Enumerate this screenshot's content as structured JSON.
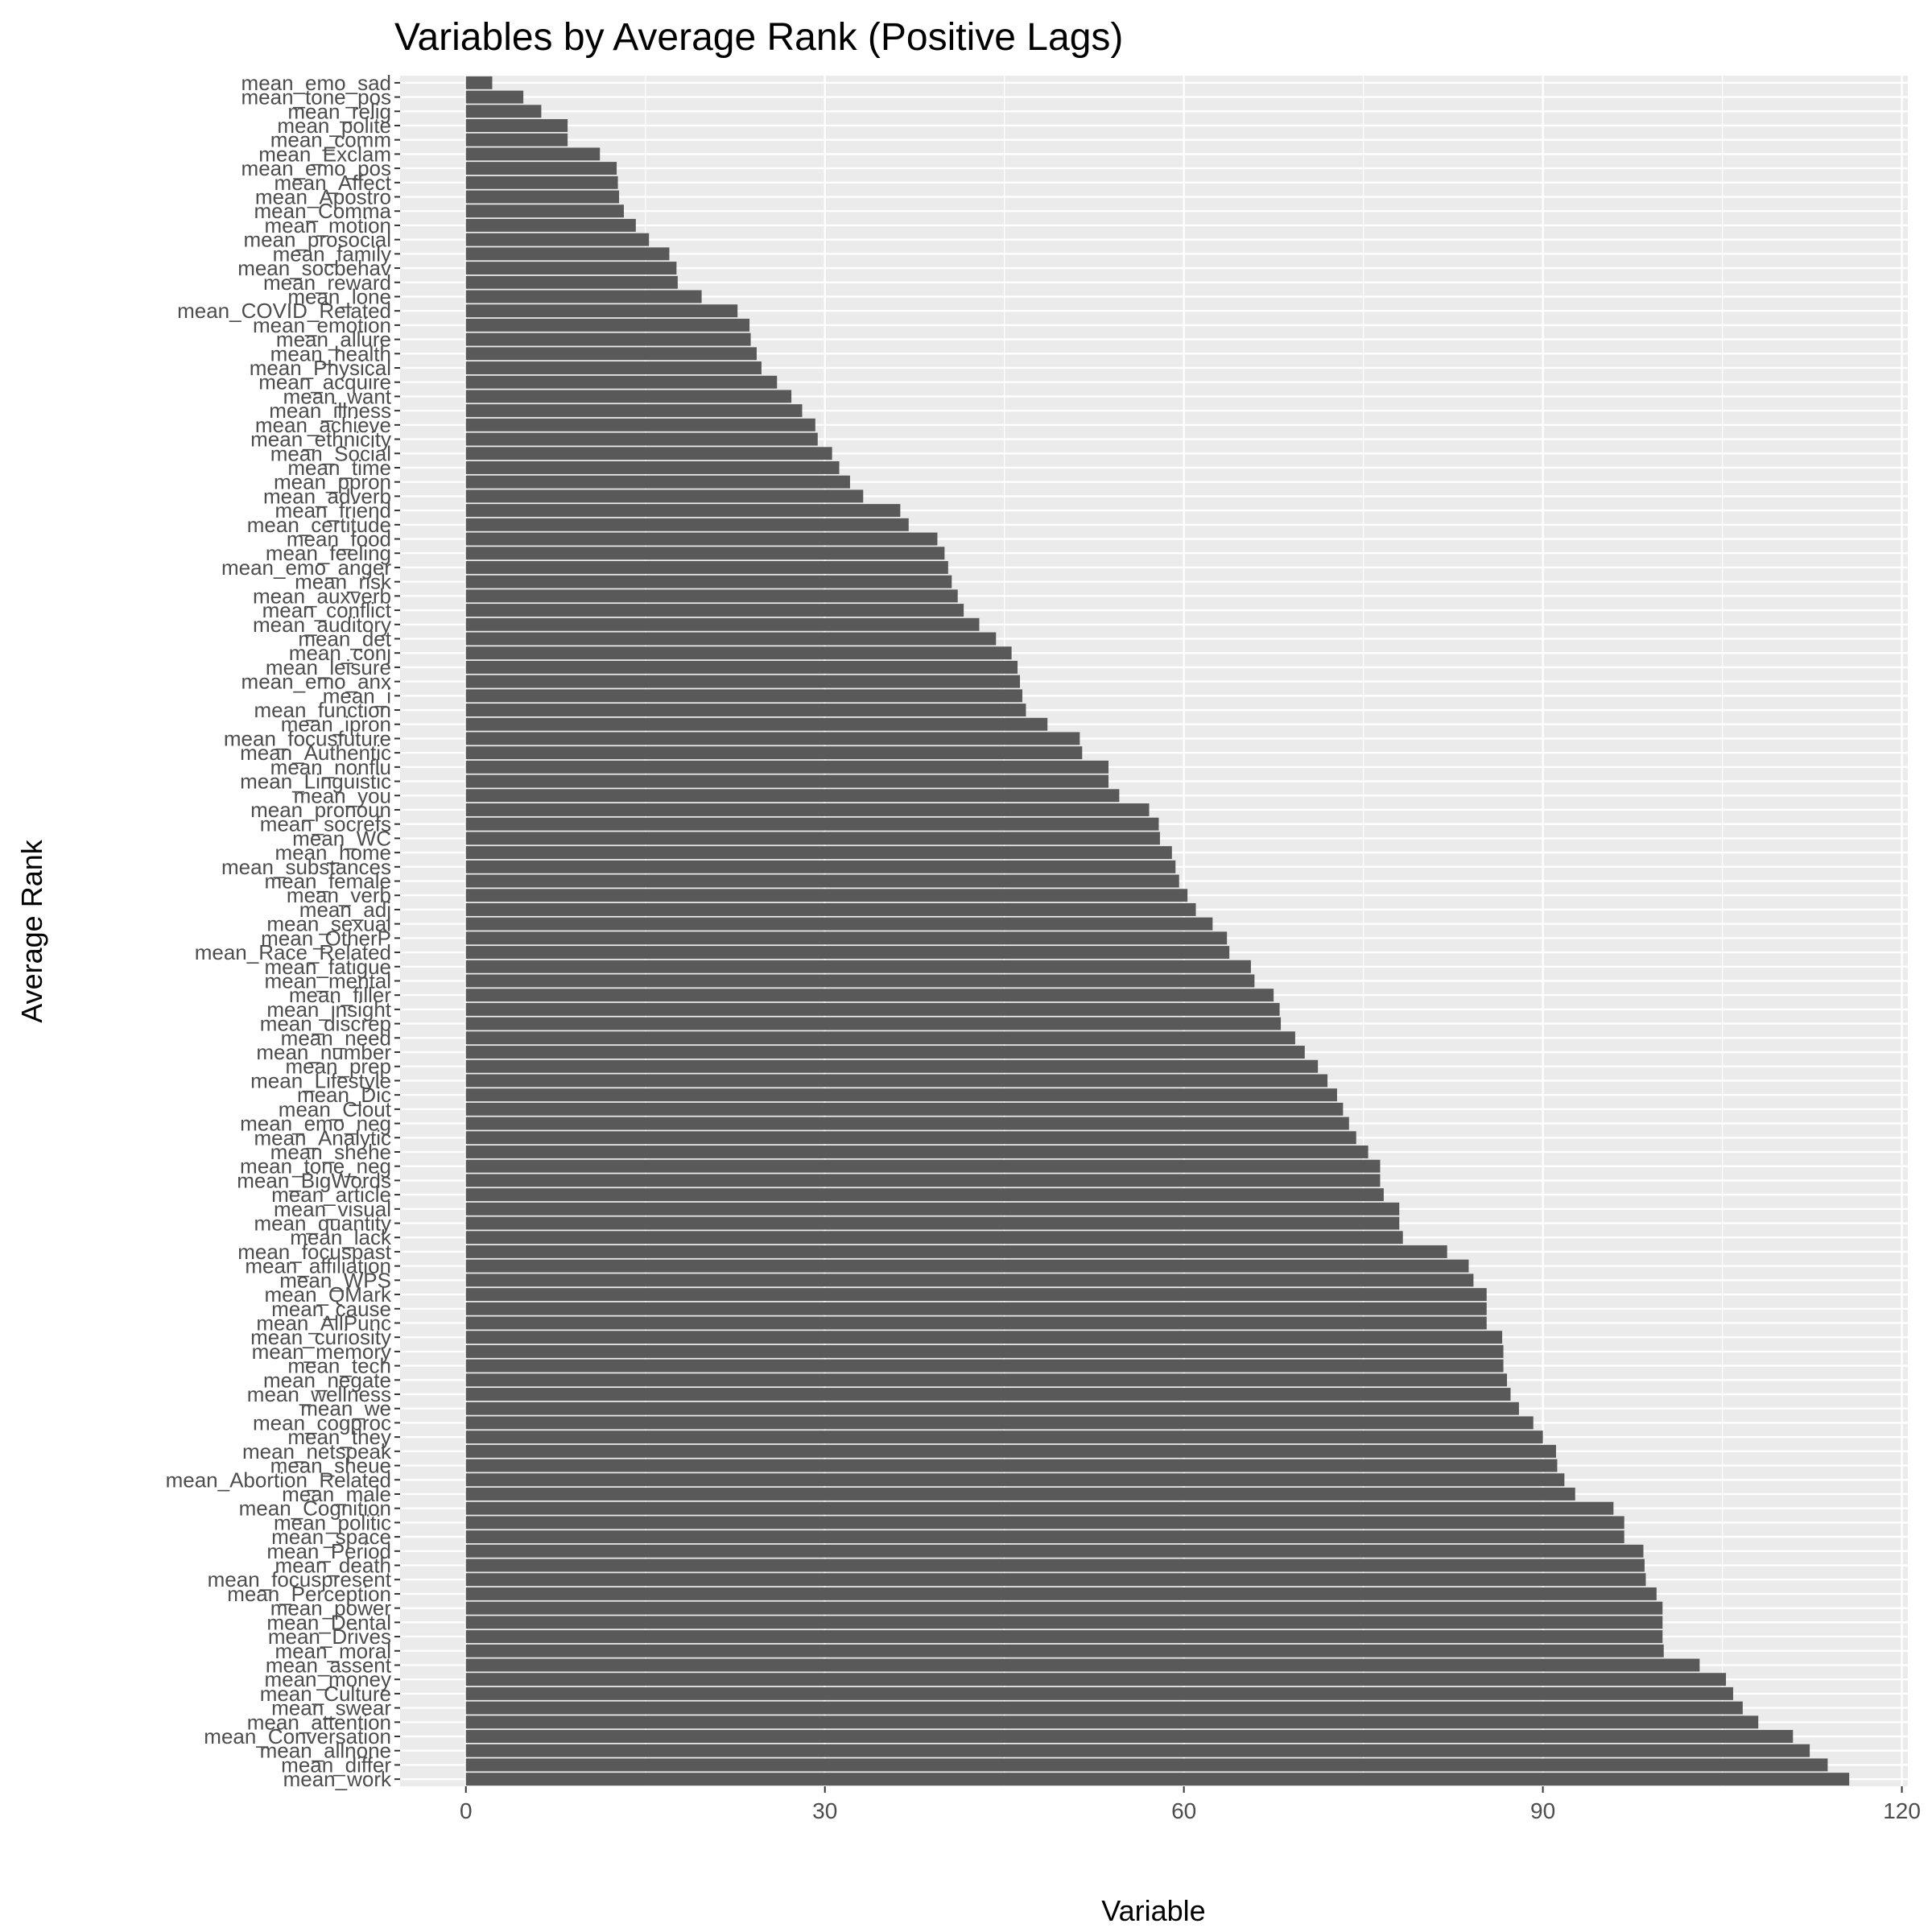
{
  "chart_data": {
    "type": "bar",
    "orientation": "horizontal",
    "title": "Variables by Average Rank (Positive Lags)",
    "xlabel": "Variable",
    "ylabel": "Average Rank",
    "xlim": [
      -5.5,
      120.5
    ],
    "x_ticks": [
      0,
      30,
      60,
      90,
      120
    ],
    "grid": true,
    "bar_color": "#595959",
    "panel_color": "#ebebeb",
    "grid_color": "#ffffff",
    "categories": [
      "mean_emo_sad",
      "mean_tone_pos",
      "mean_relig",
      "mean_polite",
      "mean_comm",
      "mean_Exclam",
      "mean_emo_pos",
      "mean_Affect",
      "mean_Apostro",
      "mean_Comma",
      "mean_motion",
      "mean_prosocial",
      "mean_family",
      "mean_socbehav",
      "mean_reward",
      "mean_lone",
      "mean_COVID_Related",
      "mean_emotion",
      "mean_allure",
      "mean_health",
      "mean_Physical",
      "mean_acquire",
      "mean_want",
      "mean_illness",
      "mean_achieve",
      "mean_ethnicity",
      "mean_Social",
      "mean_time",
      "mean_ppron",
      "mean_adverb",
      "mean_friend",
      "mean_certitude",
      "mean_food",
      "mean_feeling",
      "mean_emo_anger",
      "mean_risk",
      "mean_auxverb",
      "mean_conflict",
      "mean_auditory",
      "mean_det",
      "mean_conj",
      "mean_leisure",
      "mean_emo_anx",
      "mean_i",
      "mean_function",
      "mean_ipron",
      "mean_focusfuture",
      "mean_Authentic",
      "mean_nonflu",
      "mean_Linguistic",
      "mean_you",
      "mean_pronoun",
      "mean_socrefs",
      "mean_WC",
      "mean_home",
      "mean_substances",
      "mean_female",
      "mean_verb",
      "mean_adj",
      "mean_sexual",
      "mean_OtherP",
      "mean_Race_Related",
      "mean_fatigue",
      "mean_mental",
      "mean_filler",
      "mean_insight",
      "mean_discrep",
      "mean_need",
      "mean_number",
      "mean_prep",
      "mean_Lifestyle",
      "mean_Dic",
      "mean_Clout",
      "mean_emo_neg",
      "mean_Analytic",
      "mean_shehe",
      "mean_tone_neg",
      "mean_BigWords",
      "mean_article",
      "mean_visual",
      "mean_quantity",
      "mean_lack",
      "mean_focuspast",
      "mean_affiliation",
      "mean_WPS",
      "mean_QMark",
      "mean_cause",
      "mean_AllPunc",
      "mean_curiosity",
      "mean_memory",
      "mean_tech",
      "mean_negate",
      "mean_wellness",
      "mean_we",
      "mean_cogproc",
      "mean_they",
      "mean_netspeak",
      "mean_sheue",
      "mean_Abortion_Related",
      "mean_male",
      "mean_Cognition",
      "mean_politic",
      "mean_space",
      "mean_Period",
      "mean_death",
      "mean_focuspresent",
      "mean_Perception",
      "mean_power",
      "mean_Dental",
      "mean_Drives",
      "mean_moral",
      "mean_assent",
      "mean_money",
      "mean_Culture",
      "mean_swear",
      "mean_attention",
      "mean_Conversation",
      "mean_allnone",
      "mean_differ",
      "mean_work"
    ],
    "values": [
      2.2,
      4.8,
      6.3,
      8.5,
      8.5,
      11.2,
      12.6,
      12.7,
      12.8,
      13.2,
      14.2,
      15.3,
      17.0,
      17.6,
      17.7,
      19.7,
      22.7,
      23.7,
      23.8,
      24.3,
      24.7,
      26.0,
      27.2,
      28.1,
      29.2,
      29.4,
      30.6,
      31.2,
      32.1,
      33.2,
      36.3,
      37.0,
      39.4,
      40.0,
      40.3,
      40.6,
      41.1,
      41.6,
      42.9,
      44.3,
      45.6,
      46.1,
      46.3,
      46.5,
      46.8,
      48.6,
      51.3,
      51.5,
      53.7,
      53.7,
      54.6,
      57.1,
      57.9,
      58.0,
      59.0,
      59.3,
      59.6,
      60.3,
      61.0,
      62.4,
      63.6,
      63.8,
      65.6,
      65.9,
      67.5,
      68.0,
      68.1,
      69.3,
      70.1,
      71.2,
      72.0,
      72.8,
      73.3,
      73.8,
      74.4,
      75.4,
      76.4,
      76.4,
      76.7,
      78.0,
      78.0,
      78.3,
      82.0,
      83.8,
      84.2,
      85.3,
      85.3,
      85.3,
      86.6,
      86.7,
      86.7,
      87.0,
      87.3,
      88.0,
      89.2,
      90.0,
      91.1,
      91.2,
      91.8,
      92.7,
      95.9,
      96.8,
      96.8,
      98.4,
      98.5,
      98.6,
      99.5,
      100.0,
      100.0,
      100.0,
      100.1,
      103.1,
      105.3,
      105.9,
      106.7,
      108.0,
      110.9,
      112.3,
      113.8,
      115.6
    ]
  }
}
